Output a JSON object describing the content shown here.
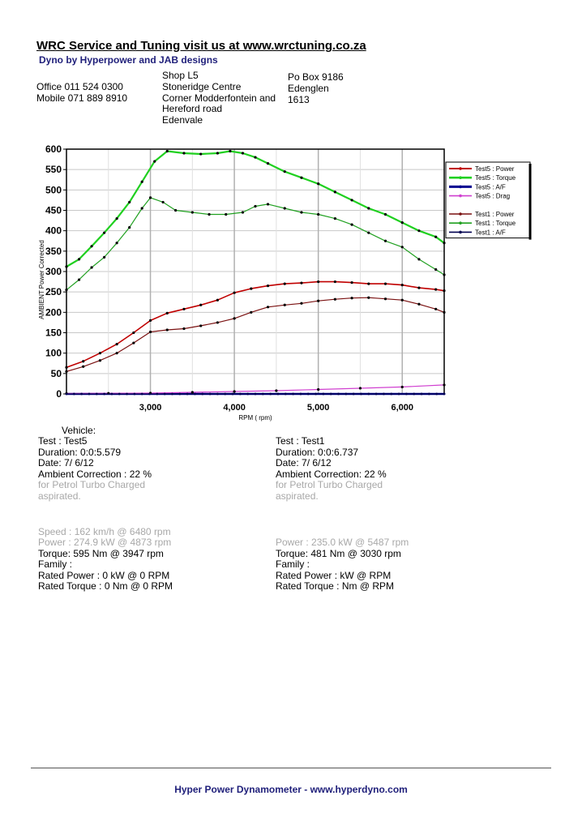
{
  "header": {
    "title": "WRC Service and Tuning visit us at www.wrctuning.co.za",
    "subtitle": "Dyno by Hyperpower and JAB designs",
    "office": "Office 011 524 0300",
    "mobile": "Mobile 071 889 8910",
    "address": [
      "Shop L5",
      "Stoneridge Centre",
      "Corner Modderfontein and",
      "Hereford road",
      "Edenvale"
    ],
    "po": [
      "Po Box 9186",
      "Edenglen",
      "1613"
    ]
  },
  "chart_data": {
    "type": "line",
    "ylabel": "AMBIENT Power Corrected",
    "xlabel": "RPM ( rpm)",
    "xlim": [
      2000,
      6500
    ],
    "ylim": [
      0,
      600
    ],
    "x_ticks": [
      3000,
      4000,
      5000,
      6000
    ],
    "x_tick_labels": [
      "3,000",
      "4,000",
      "5,000",
      "6,000"
    ],
    "y_ticks": [
      0,
      50,
      100,
      150,
      200,
      250,
      300,
      350,
      400,
      450,
      500,
      550,
      600
    ],
    "grid": true,
    "legend_position": "top-right",
    "series": [
      {
        "name": "Test5 : Power",
        "color": "#c00000",
        "width": 1.6,
        "x": [
          2000,
          2200,
          2400,
          2600,
          2800,
          3000,
          3200,
          3400,
          3600,
          3800,
          4000,
          4200,
          4400,
          4600,
          4800,
          5000,
          5200,
          5400,
          5600,
          5800,
          6000,
          6200,
          6400,
          6500
        ],
        "y": [
          65,
          80,
          100,
          122,
          150,
          180,
          198,
          208,
          218,
          230,
          248,
          258,
          265,
          270,
          272,
          275,
          275,
          273,
          270,
          270,
          267,
          260,
          256,
          253
        ]
      },
      {
        "name": "Test5 : Torque",
        "color": "#20d020",
        "width": 2.2,
        "x": [
          2000,
          2150,
          2300,
          2450,
          2600,
          2750,
          2900,
          3050,
          3200,
          3400,
          3600,
          3800,
          3950,
          4100,
          4250,
          4400,
          4600,
          4800,
          5000,
          5200,
          5400,
          5600,
          5800,
          6000,
          6200,
          6400,
          6500
        ],
        "y": [
          312,
          330,
          362,
          395,
          430,
          470,
          520,
          570,
          595,
          590,
          588,
          590,
          595,
          590,
          580,
          565,
          545,
          530,
          515,
          495,
          475,
          455,
          440,
          420,
          400,
          385,
          370
        ]
      },
      {
        "name": "Test5 : A/F",
        "color": "#000090",
        "width": 2.6,
        "x": [
          2000,
          6500
        ],
        "y": [
          0,
          0
        ]
      },
      {
        "name": "Test5 : Drag",
        "color": "#d040d0",
        "width": 1.2,
        "x": [
          2000,
          2500,
          3000,
          3500,
          4000,
          4500,
          5000,
          5500,
          6000,
          6500
        ],
        "y": [
          1,
          1.5,
          2,
          4,
          6,
          8,
          11,
          14,
          17,
          22
        ]
      },
      {
        "name": "Test1 : Power",
        "color": "#7a1010",
        "width": 1.2,
        "x": [
          2000,
          2200,
          2400,
          2600,
          2800,
          3000,
          3200,
          3400,
          3600,
          3800,
          4000,
          4200,
          4400,
          4600,
          4800,
          5000,
          5200,
          5400,
          5600,
          5800,
          6000,
          6200,
          6400,
          6500
        ],
        "y": [
          55,
          67,
          82,
          100,
          125,
          152,
          157,
          160,
          167,
          175,
          185,
          200,
          213,
          218,
          222,
          228,
          232,
          235,
          236,
          233,
          230,
          220,
          208,
          200
        ]
      },
      {
        "name": "Test1 : Torque",
        "color": "#20a020",
        "width": 1.2,
        "x": [
          2000,
          2150,
          2300,
          2450,
          2600,
          2750,
          2900,
          3000,
          3150,
          3300,
          3500,
          3700,
          3900,
          4100,
          4250,
          4400,
          4600,
          4800,
          5000,
          5200,
          5400,
          5600,
          5800,
          6000,
          6200,
          6400,
          6500
        ],
        "y": [
          255,
          280,
          310,
          335,
          370,
          408,
          455,
          481,
          470,
          450,
          445,
          440,
          440,
          445,
          460,
          465,
          455,
          445,
          440,
          430,
          415,
          395,
          375,
          360,
          330,
          305,
          292
        ]
      },
      {
        "name": "Test1 : A/F",
        "color": "#000050",
        "width": 1.2,
        "x": [
          2000,
          6500
        ],
        "y": [
          0,
          0
        ]
      }
    ]
  },
  "test5": {
    "vehicle": "Vehicle:",
    "test": "Test    : Test5",
    "duration": "Duration: 0:0:5.579",
    "date": "Date:  7/ 6/12",
    "ambient": "Ambient Correction : 22 %",
    "fuel1": " for Petrol Turbo Charged",
    "fuel2": "aspirated.",
    "speed": "Speed : 162 km/h @ 6480 rpm",
    "power": "Power : 274.9 kW @ 4873 rpm",
    "torque": "Torque: 595 Nm @ 3947 rpm",
    "family": "Family :",
    "rated_power": "Rated Power : 0 kW @ 0 RPM",
    "rated_torque": "Rated Torque : 0 Nm @ 0 RPM"
  },
  "test1": {
    "test": "Test    : Test1",
    "duration": "Duration: 0:0:6.737",
    "date": "Date:  7/ 6/12",
    "ambient": "Ambient Correction: 22 %",
    "fuel1": " for Petrol Turbo Charged",
    "fuel2": "aspirated.",
    "power": "Power : 235.0 kW @ 5487 rpm",
    "torque": "Torque: 481 Nm @ 3030 rpm",
    "family": "Family :",
    "rated_power": "Rated Power :  kW @  RPM",
    "rated_torque": "Rated Torque :  Nm @  RPM"
  },
  "footer": {
    "text": "Hyper Power Dynamometer  -  www.hyperdyno.com"
  }
}
